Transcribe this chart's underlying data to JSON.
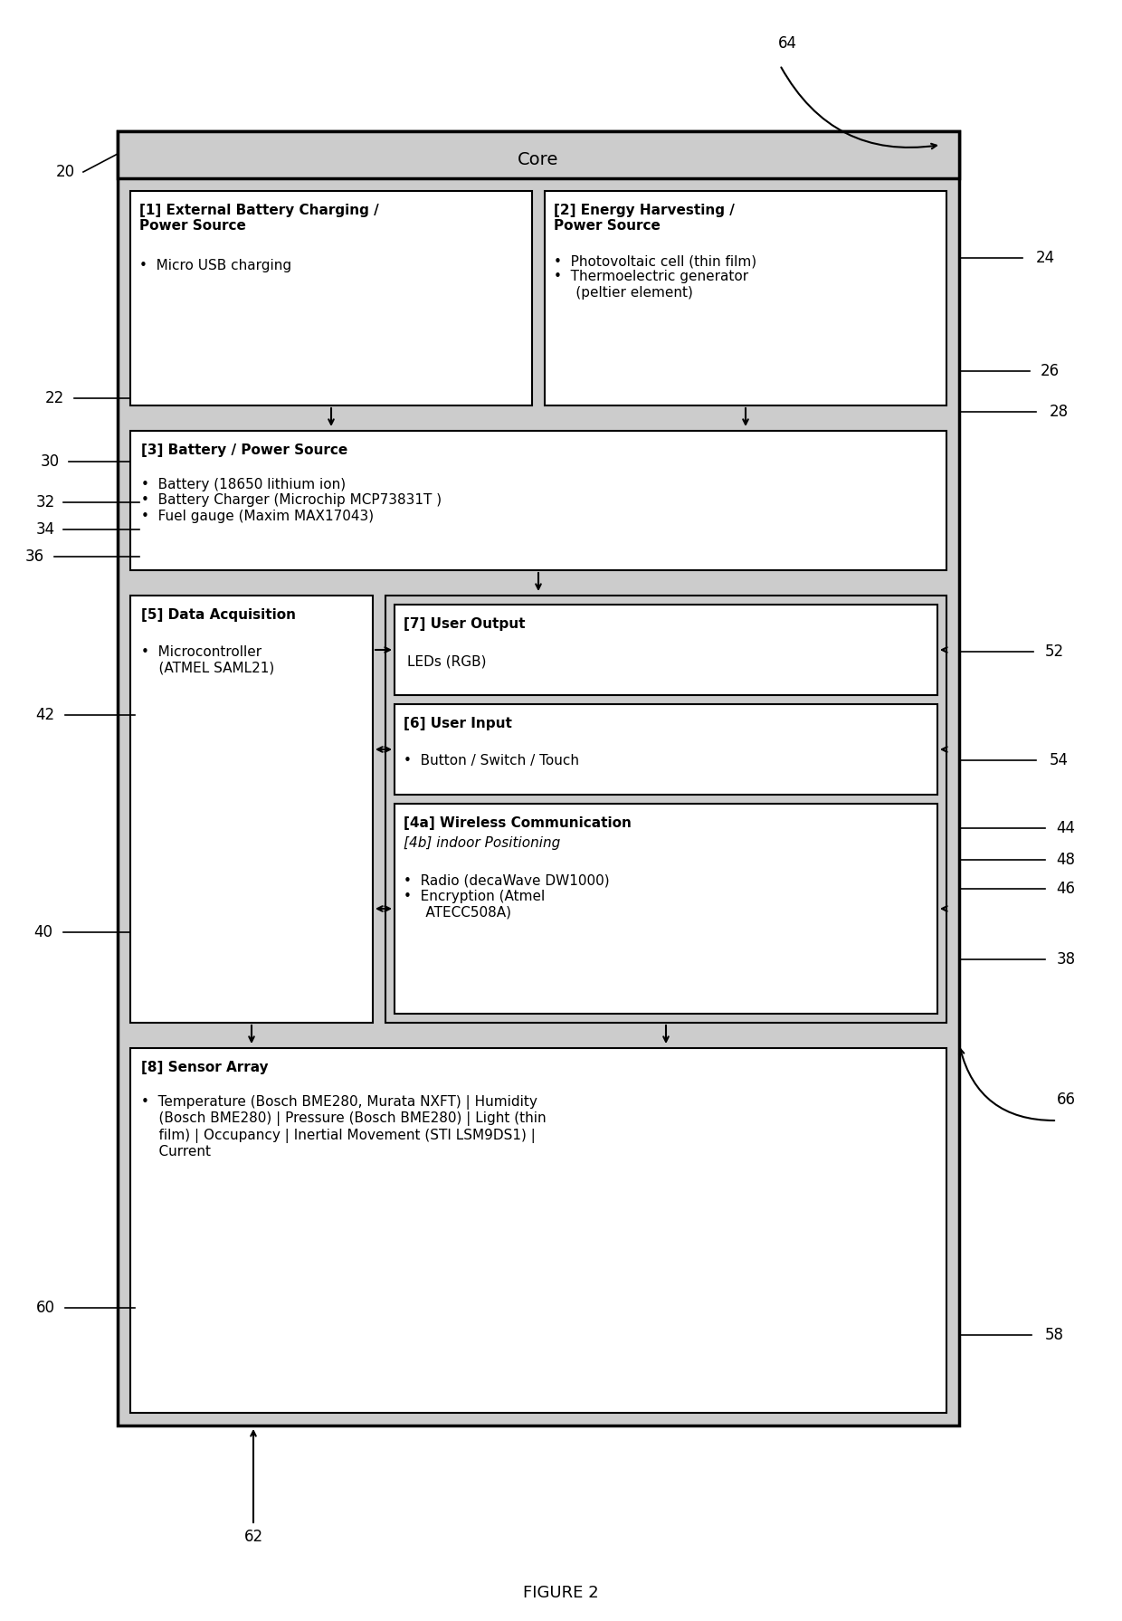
{
  "title": "FIGURE 2",
  "bg_color": "#ffffff",
  "shading_color": "#cccccc",
  "box_fill": "#ffffff",
  "border_color": "#000000",
  "core_label": "Core",
  "box1_title": "[1] External Battery Charging /\nPower Source",
  "box1_content": "•  Micro USB charging",
  "box2_title": "[2] Energy Harvesting /\nPower Source",
  "box2_content": "•  Photovoltaic cell (thin film)\n•  Thermoelectric generator\n     (peltier element)",
  "box3_title": "[3] Battery / Power Source",
  "box3_content": "•  Battery (18650 lithium ion)\n•  Battery Charger (Microchip MCP73831T )\n•  Fuel gauge (Maxim MAX17043)",
  "box5_title": "[5] Data Acquisition",
  "box5_content": "•  Microcontroller\n    (ATMEL SAML21)",
  "box7_title": "[7] User Output",
  "box7_content": "LEDs (RGB)",
  "box6_title": "[6] User Input",
  "box6_content": "•  Button / Switch / Touch",
  "box4a_title": "[4a] Wireless Communication",
  "box4b_title": "[4b] indoor Positioning",
  "box4_content": "•  Radio (decaWave DW1000)\n•  Encryption (Atmel\n     ATECC508A)",
  "box8_title": "[8] Sensor Array",
  "box8_content": "•  Temperature (Bosch BME280, Murata NXFT) | Humidity\n    (Bosch BME280) | Pressure (Bosch BME280) | Light (thin\n    film) | Occupancy | Inertial Movement (STI LSM9DS1) |\n    Current"
}
